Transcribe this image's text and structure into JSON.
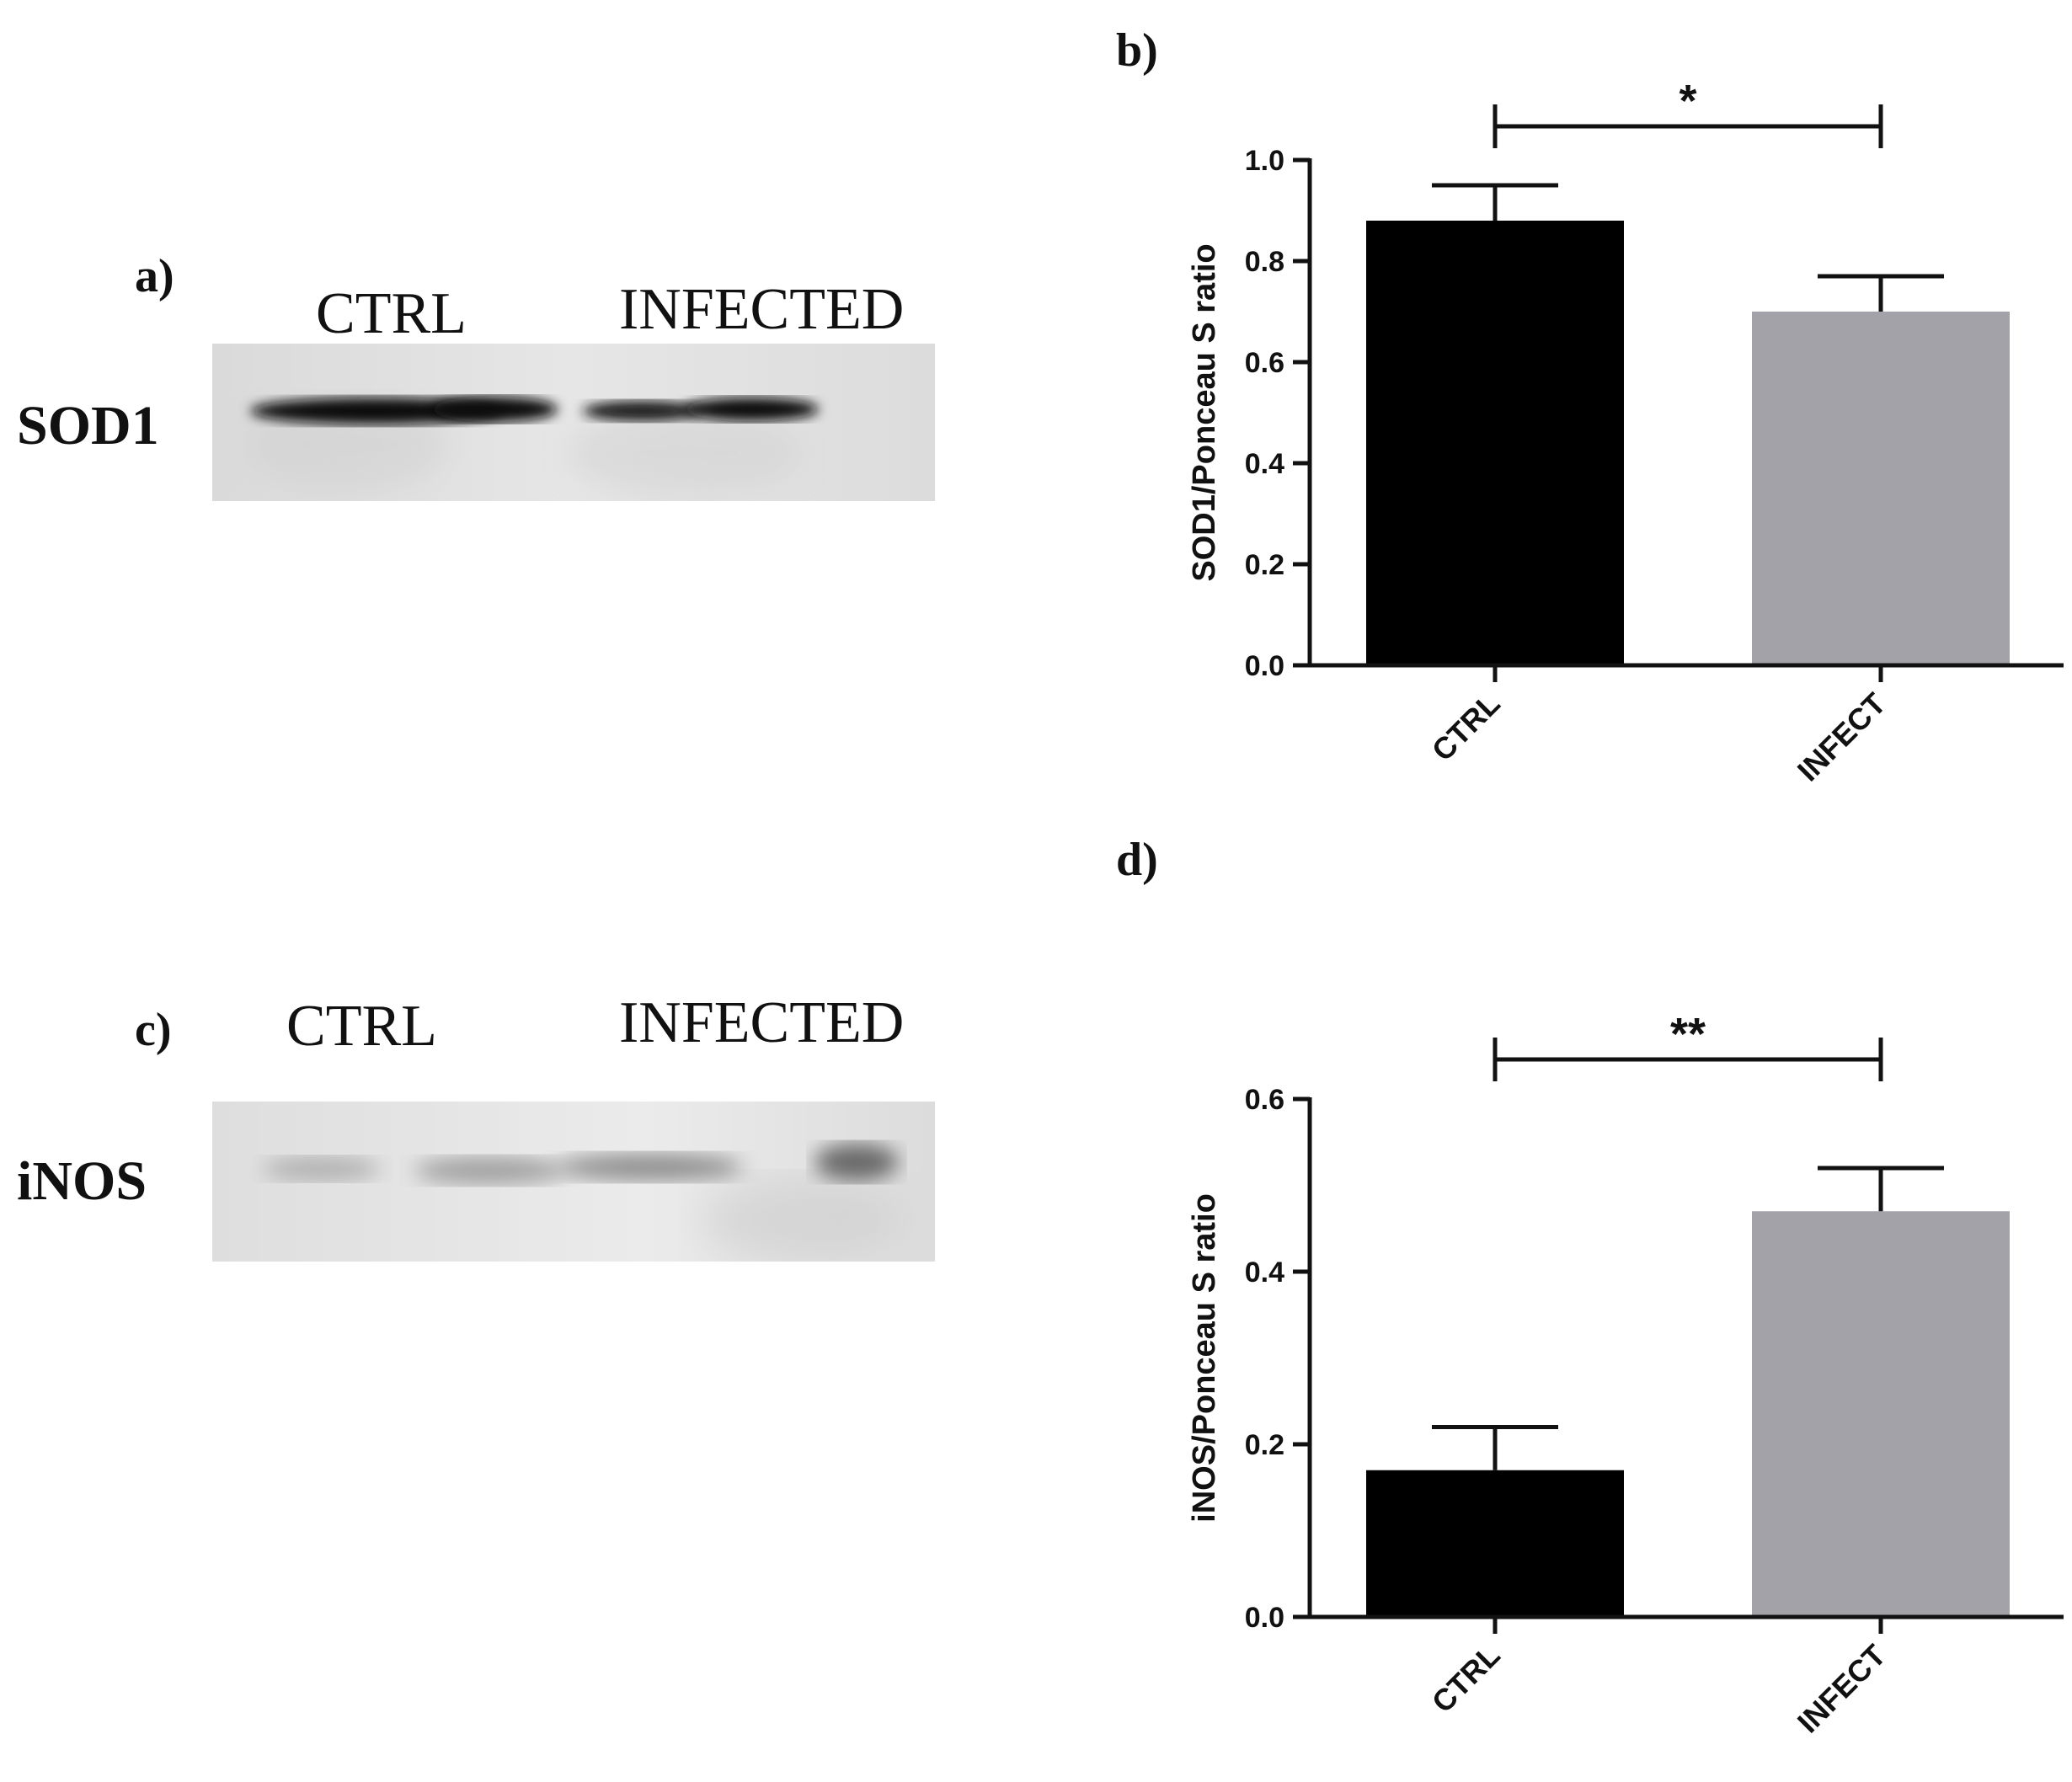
{
  "panels": {
    "a": "a)",
    "b": "b)",
    "c": "c)",
    "d": "d)"
  },
  "blots": [
    {
      "panel": "a",
      "protein": "SOD1",
      "lanes": [
        "CTRL",
        "INFECTED"
      ]
    },
    {
      "panel": "c",
      "protein": "iNOS",
      "lanes": [
        "CTRL",
        "INFECTED"
      ]
    }
  ],
  "colors": {
    "ctrl_bar": "#000000",
    "infect_bar": "#a3a2a8",
    "axis": "#111111"
  },
  "chart_data": [
    {
      "panel": "b",
      "type": "bar",
      "title": "",
      "xlabel": "",
      "ylabel": "SOD1/Ponceau S ratio",
      "categories": [
        "CTRL",
        "INFECT"
      ],
      "values": [
        0.88,
        0.7
      ],
      "errors": [
        0.07,
        0.07
      ],
      "ylim": [
        0.0,
        1.0
      ],
      "yticks": [
        "0.0",
        "0.2",
        "0.4",
        "0.6",
        "0.8",
        "1.0"
      ],
      "significance": "*"
    },
    {
      "panel": "d",
      "type": "bar",
      "title": "",
      "xlabel": "",
      "ylabel": "iNOS/Ponceau S ratio",
      "categories": [
        "CTRL",
        "INFECT"
      ],
      "values": [
        0.17,
        0.47
      ],
      "errors": [
        0.05,
        0.05
      ],
      "ylim": [
        0.0,
        0.6
      ],
      "yticks": [
        "0.0",
        "0.2",
        "0.4",
        "0.6"
      ],
      "significance": "**"
    }
  ]
}
